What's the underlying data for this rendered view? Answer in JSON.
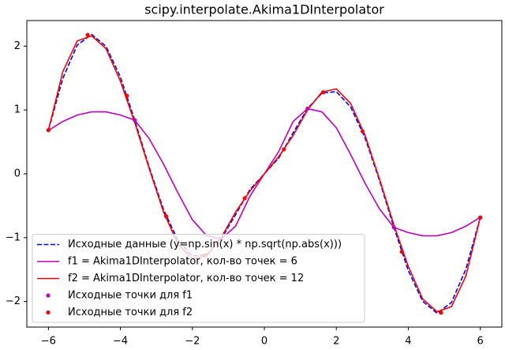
{
  "chart_data": {
    "type": "line",
    "title": "scipy.interpolate.Akima1DInterpolator",
    "xlim": [
      -6.6,
      6.6
    ],
    "ylim": [
      -2.4,
      2.4
    ],
    "xticks": [
      {
        "value": -6,
        "label": "−6"
      },
      {
        "value": -4,
        "label": "−4"
      },
      {
        "value": -2,
        "label": "−2"
      },
      0,
      2,
      4,
      6
    ],
    "yticks": [
      {
        "value": -2,
        "label": "−2"
      },
      {
        "value": -1,
        "label": "−1"
      },
      0,
      1,
      2
    ],
    "legend": "lower left",
    "series": [
      {
        "name": "Исходные данные (y=np.sin(x) * np.sqrt(np.abs(x)))",
        "color": "#0000ff",
        "linestyle": "dashed",
        "x": [
          -6,
          -5.6,
          -5.2,
          -4.8,
          -4.4,
          -4,
          -3.6,
          -3.2,
          -2.8,
          -2.4,
          -2,
          -1.6,
          -1.2,
          -0.8,
          -0.4,
          0,
          0.4,
          0.8,
          1.2,
          1.6,
          2,
          2.4,
          2.8,
          3.2,
          3.6,
          4,
          4.4,
          4.8,
          5.2,
          5.6,
          6
        ],
        "values": [
          0.684,
          1.494,
          2.015,
          2.183,
          1.996,
          1.514,
          0.839,
          0.104,
          -0.56,
          -1.046,
          -1.286,
          -1.264,
          -1.021,
          -0.642,
          -0.246,
          0,
          0.246,
          0.642,
          1.021,
          1.264,
          1.286,
          1.046,
          0.56,
          -0.104,
          -0.839,
          -1.514,
          -1.996,
          -2.183,
          -2.015,
          -1.494,
          -0.684
        ]
      },
      {
        "name": "f1 = Akima1DInterpolator, кол-во точек = 6",
        "color": "#bf00bf",
        "linestyle": "solid",
        "x": [
          -6,
          -5.6,
          -5.2,
          -4.8,
          -4.4,
          -4,
          -3.6,
          -3.2,
          -2.8,
          -2.4,
          -2,
          -1.6,
          -1.2,
          -0.8,
          -0.4,
          0,
          0.4,
          0.8,
          1.2,
          1.6,
          2,
          2.4,
          2.8,
          3.2,
          3.6,
          4,
          4.4,
          4.8,
          5.2,
          5.6,
          6
        ],
        "values": [
          0.68,
          0.82,
          0.92,
          0.97,
          0.97,
          0.92,
          0.84,
          0.55,
          0.15,
          -0.3,
          -0.72,
          -0.97,
          -1.02,
          -0.82,
          -0.35,
          0,
          0.35,
          0.82,
          1.02,
          0.97,
          0.72,
          0.3,
          -0.15,
          -0.55,
          -0.84,
          -0.92,
          -0.97,
          -0.97,
          -0.92,
          -0.82,
          -0.68
        ]
      },
      {
        "name": "f2 = Akima1DInterpolator, кол-во точек = 12",
        "color": "#ff0000",
        "linestyle": "solid",
        "x": [
          -6,
          -5.6,
          -5.2,
          -4.8,
          -4.4,
          -4,
          -3.6,
          -3.2,
          -2.8,
          -2.4,
          -2,
          -1.6,
          -1.2,
          -0.8,
          -0.4,
          0,
          0.4,
          0.8,
          1.2,
          1.6,
          2,
          2.4,
          2.8,
          3.2,
          3.6,
          4,
          4.4,
          4.8,
          5.2,
          5.6,
          6
        ],
        "values": [
          0.684,
          1.6,
          2.08,
          2.16,
          1.96,
          1.45,
          0.8,
          0.08,
          -0.6,
          -1.1,
          -1.33,
          -1.28,
          -1.0,
          -0.6,
          -0.27,
          0,
          0.27,
          0.6,
          1.0,
          1.28,
          1.33,
          1.1,
          0.6,
          -0.08,
          -0.8,
          -1.45,
          -1.96,
          -2.16,
          -2.08,
          -1.6,
          -0.684
        ]
      },
      {
        "name": "Исходные точки для f1",
        "color": "#bf00bf",
        "marker": "o",
        "x": [
          -6,
          -3.6,
          -1.2,
          1.2,
          3.6,
          6
        ],
        "values": [
          0.684,
          0.839,
          -1.021,
          1.021,
          -0.839,
          -0.684
        ]
      },
      {
        "name": "Исходные точки для f2",
        "color": "#ff0000",
        "marker": "o",
        "x": [
          -6,
          -4.909,
          -3.818,
          -2.727,
          -1.636,
          -0.545,
          0.545,
          1.636,
          2.727,
          3.818,
          4.909,
          6
        ],
        "values": [
          0.684,
          2.175,
          1.221,
          -0.666,
          -1.276,
          -0.383,
          0.383,
          1.276,
          0.666,
          -1.221,
          -2.175,
          -0.684
        ]
      }
    ]
  }
}
